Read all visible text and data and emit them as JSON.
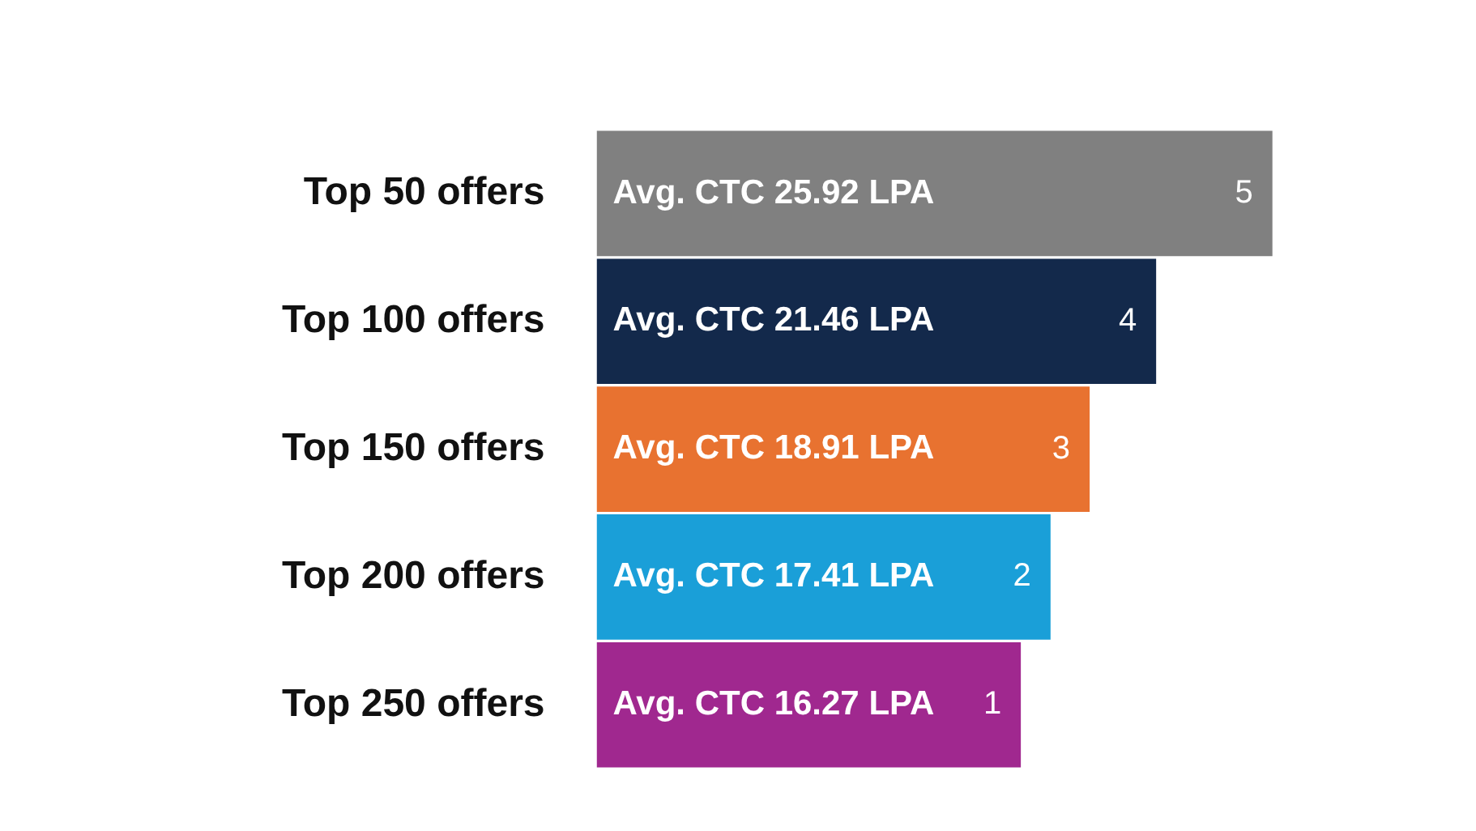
{
  "chart_data": {
    "type": "bar",
    "orientation": "horizontal",
    "categories": [
      "Top 50 offers",
      "Top 100 offers",
      "Top 150 offers",
      "Top 200 offers",
      "Top 250 offers"
    ],
    "values": [
      25.92,
      21.46,
      18.91,
      17.41,
      16.27
    ],
    "value_labels": [
      "Avg. CTC 25.92 LPA",
      "Avg. CTC 21.46 LPA",
      "Avg. CTC 18.91 LPA",
      "Avg. CTC 17.41 LPA",
      "Avg. CTC 16.27 LPA"
    ],
    "colors": [
      "#808080",
      "#13294b",
      "#e87230",
      "#1a9fd8",
      "#a0288f"
    ],
    "annotations": [
      "5",
      "4",
      "3",
      "2",
      "1"
    ],
    "tick_labels": "y",
    "grid": false,
    "legend": false
  }
}
